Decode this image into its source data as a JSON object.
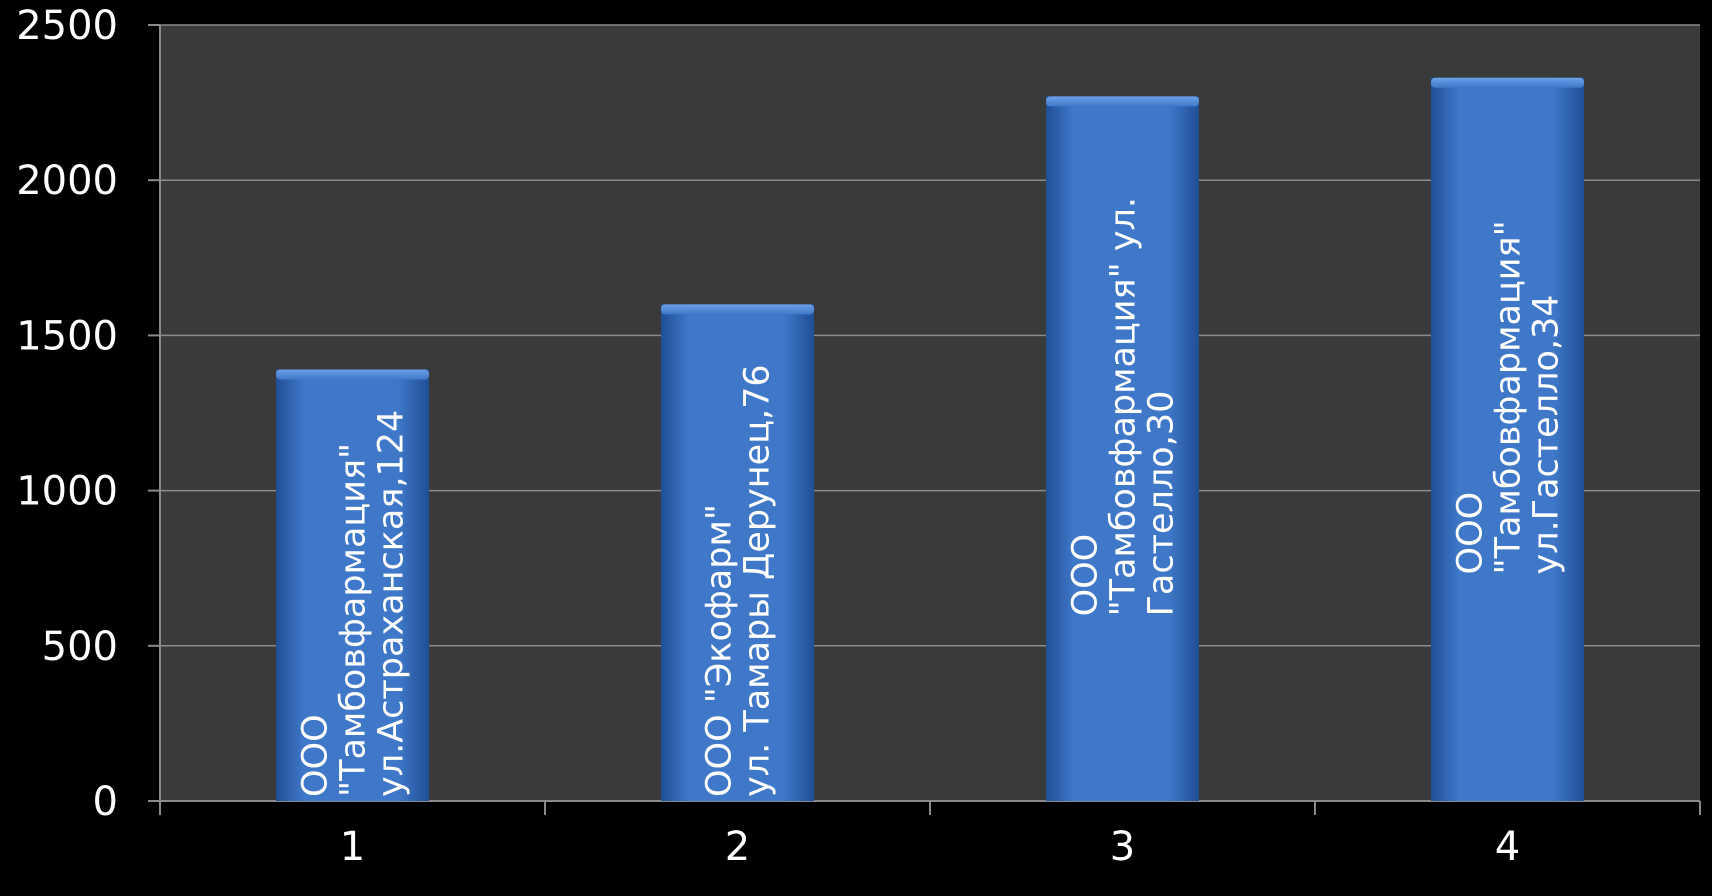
{
  "chart_data": {
    "type": "bar",
    "categories": [
      "1",
      "2",
      "3",
      "4"
    ],
    "values": [
      1390,
      1600,
      2270,
      2330
    ],
    "bar_labels": [
      [
        "ООО",
        "\"Тамбовфармация\"",
        "ул.Астраханская,124"
      ],
      [
        "ООО \"Экофарм\"",
        "ул. Тамары Дерунец,76"
      ],
      [
        "ООО",
        "\"Тамбовфармация\" ул.",
        "Гастелло,30"
      ],
      [
        "ООО",
        "\"Тамбовфармация\"",
        "ул.Гастелло,34"
      ]
    ],
    "yticks": [
      "0",
      "500",
      "1000",
      "1500",
      "2000",
      "2500"
    ],
    "ylim": [
      0,
      2500
    ],
    "grid": true,
    "title": "",
    "xlabel": "",
    "ylabel": "",
    "colors": {
      "background": "#000000",
      "plot_area": "#3a3a3a",
      "bar": "#3f78c8",
      "bar_light": "#6aa0e8",
      "bar_dark": "#1f4f96",
      "grid": "#8a8a8a",
      "text": "#ffffff"
    }
  }
}
